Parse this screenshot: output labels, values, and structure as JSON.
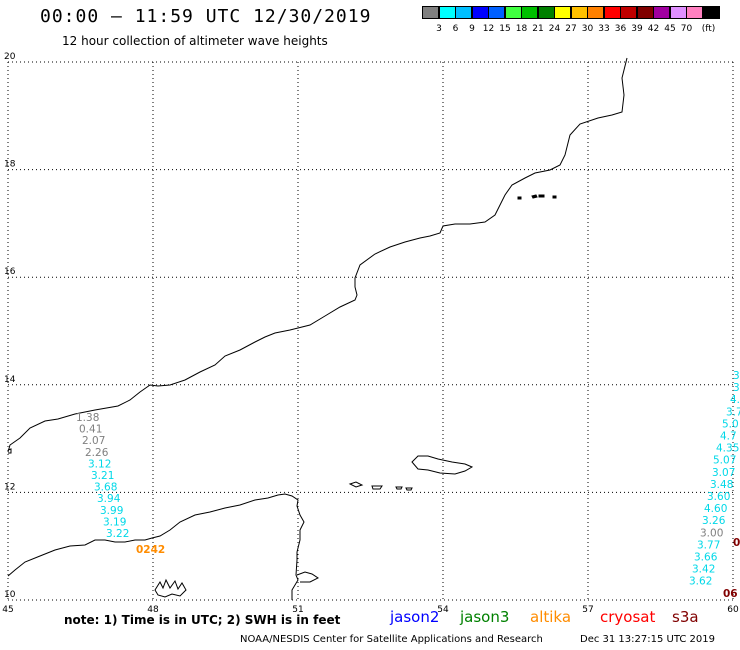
{
  "header": {
    "title": "00:00 – 11:59 UTC 12/30/2019",
    "subtitle": "12 hour collection of altimeter wave heights"
  },
  "colorbar": {
    "unit": "(ft)",
    "colors": [
      "#808080",
      "#00ffff",
      "#00bfff",
      "#0000ff",
      "#0060ff",
      "#40ff40",
      "#00c000",
      "#008000",
      "#ffff00",
      "#ffc000",
      "#ff8000",
      "#ff0000",
      "#c00000",
      "#800000",
      "#a000a0",
      "#e090ff",
      "#ff80c0",
      "#000000"
    ],
    "labels": [
      "3",
      "6",
      "9",
      "12",
      "15",
      "18",
      "21",
      "24",
      "27",
      "30",
      "33",
      "36",
      "39",
      "42",
      "45",
      "70"
    ]
  },
  "map": {
    "lon_range": [
      45,
      60
    ],
    "lat_range": [
      10,
      20
    ],
    "lon_ticks": [
      "45",
      "48",
      "51",
      "54",
      "57",
      "60"
    ],
    "lat_ticks": [
      "20",
      "18",
      "16",
      "14",
      "12",
      "10"
    ],
    "grid": true
  },
  "tracks": {
    "left": [
      {
        "value": "1.38",
        "color": "#808080"
      },
      {
        "value": "0.41",
        "color": "#808080"
      },
      {
        "value": "2.07",
        "color": "#808080"
      },
      {
        "value": "2.26",
        "color": "#808080"
      },
      {
        "value": "3.12",
        "color": "#00d8e8"
      },
      {
        "value": "3.21",
        "color": "#00d8e8"
      },
      {
        "value": "3.68",
        "color": "#00d8e8"
      },
      {
        "value": "3.94",
        "color": "#00d8e8"
      },
      {
        "value": "3.99",
        "color": "#00d8e8"
      },
      {
        "value": "3.19",
        "color": "#00d8e8"
      },
      {
        "value": "3.22",
        "color": "#00d8e8"
      }
    ],
    "left_time": {
      "value": "0242",
      "color": "#ff8c00"
    },
    "right": [
      {
        "value": "3",
        "color": "#00d8e8"
      },
      {
        "value": "3.",
        "color": "#00d8e8"
      },
      {
        "value": "4.",
        "color": "#00d8e8"
      },
      {
        "value": "3.7",
        "color": "#00d8e8"
      },
      {
        "value": "5.0",
        "color": "#00d8e8"
      },
      {
        "value": "4.7",
        "color": "#00d8e8"
      },
      {
        "value": "4.35",
        "color": "#00d8e8"
      },
      {
        "value": "5.07",
        "color": "#00d8e8"
      },
      {
        "value": "3.07",
        "color": "#00d8e8"
      },
      {
        "value": "3.48",
        "color": "#00d8e8"
      },
      {
        "value": "3.60",
        "color": "#00d8e8"
      },
      {
        "value": "4.60",
        "color": "#00d8e8"
      },
      {
        "value": "3.26",
        "color": "#00d8e8"
      },
      {
        "value": "3.00",
        "color": "#808080"
      },
      {
        "value": "3.77",
        "color": "#00d8e8"
      },
      {
        "value": "3.66",
        "color": "#00d8e8"
      },
      {
        "value": "3.42",
        "color": "#00d8e8"
      },
      {
        "value": "3.62",
        "color": "#00d8e8"
      }
    ],
    "right_time_1": {
      "value": "0",
      "color": "#800000"
    },
    "right_time_2": {
      "value": "06",
      "color": "#800000"
    }
  },
  "footer": {
    "note": "note:  1) Time is in UTC;  2) SWH is in feet",
    "satellites": [
      {
        "name": "jason2",
        "color": "#0000ff"
      },
      {
        "name": "jason3",
        "color": "#008000"
      },
      {
        "name": "altika",
        "color": "#ff8c00"
      },
      {
        "name": "cryosat",
        "color": "#ff0000"
      },
      {
        "name": "s3a",
        "color": "#800000"
      }
    ],
    "credit": "NOAA/NESDIS Center for Satellite Applications and Research",
    "timestamp": "Dec 31 13:27:15 UTC 2019"
  }
}
